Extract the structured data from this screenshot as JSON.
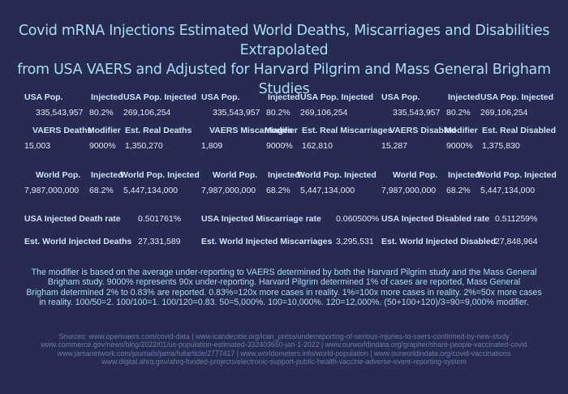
{
  "title": {
    "line1": "Covid mRNA Injections Estimated World Deaths, Miscarriages and Disabilities Extrapolated",
    "line2": "from USA VAERS and Adjusted for Harvard Pilgrim and Mass General Brigham Studies"
  },
  "columns": [
    {
      "usa": {
        "headers": [
          "USA Pop.",
          "Injected",
          "USA Pop. Injected"
        ],
        "values": [
          "335,543,957",
          "80.2%",
          "269,106,254"
        ]
      },
      "vaers": {
        "headers": [
          "VAERS Deaths",
          "Modifier",
          "Est. Real Deaths"
        ],
        "values": [
          "15,003",
          "9000%",
          "1,350,270"
        ]
      },
      "world": {
        "headers": [
          "World Pop.",
          "Injected",
          "World Pop. Injected"
        ],
        "values": [
          "7,987,000,000",
          "68.2%",
          "5,447,134,000"
        ]
      },
      "rate": {
        "label": "USA Injected Death rate",
        "value": "0.501761%"
      },
      "est": {
        "label": "Est. World Injected Deaths",
        "value": "27,331,589"
      }
    },
    {
      "usa": {
        "headers": [
          "USA Pop.",
          "Injected",
          "USA Pop. Injected"
        ],
        "values": [
          "335,543,957",
          "80.2%",
          "269,106,254"
        ]
      },
      "vaers": {
        "headers": [
          "VAERS Miscarriages",
          "Modifier",
          "Est. Real Miscarriages"
        ],
        "values": [
          "1,809",
          "9000%",
          "162,810"
        ]
      },
      "world": {
        "headers": [
          "World Pop.",
          "Injected",
          "World Pop. Injected"
        ],
        "values": [
          "7,987,000,000",
          "68.2%",
          "5,447,134,000"
        ]
      },
      "rate": {
        "label": "USA Injected Miscarriage rate",
        "value": "0.060500%"
      },
      "est": {
        "label": "Est. World Injected Miscarriages",
        "value": "3,295,531"
      }
    },
    {
      "usa": {
        "headers": [
          "USA Pop.",
          "Injected",
          "USA Pop. Injected"
        ],
        "values": [
          "335,543,957",
          "80.2%",
          "269,106,254"
        ]
      },
      "vaers": {
        "headers": [
          "VAERS Disabled",
          "Modifier",
          "Est. Real Disabled"
        ],
        "values": [
          "15,287",
          "9000%",
          "1,375,830"
        ]
      },
      "world": {
        "headers": [
          "World Pop.",
          "Injected",
          "World Pop. Injected"
        ],
        "values": [
          "7,987,000,000",
          "68.2%",
          "5,447,134,000"
        ]
      },
      "rate": {
        "label": "USA Injected Disabled rate",
        "value": "0.511259%"
      },
      "est": {
        "label": "Est. World Injected Disabled",
        "value": "27,848,964"
      }
    }
  ],
  "note": {
    "line1": "The modifier is based on the average under-reporting to VAERS determined by both the Harvard Pilgrim study and the Mass General",
    "line2": "Brigham study. 9000% represents 90x under-reporting. Harvard Pilgrim determined 1% of cases are reported, Mass General",
    "line3": "Brigham determined 2% to 0.83% are reported. 0.83%=120x more cases in reality. 1%=100x more cases in reality. 2%=50x more cases",
    "line4": "in reality. 100/50=2. 100/100=1. 100/120=0.83. 50=5,000%. 100=10,000%. 120=12,000%. (50+100+120)/3=90=9,000% modifier."
  },
  "sources": {
    "line1": "Sources: www.openvaers.com/covid-data | www.icandecide.org/ican_press/underreporting-of-serious-injuries-to-vaers-confirmed-by-new-study",
    "line2": "www.commerce.gov/news/blog/2022/01/us-population-estimated-332403650-jan-1-2022 | www.ourworldindata.org/grapher/share-people-vaccinated-covid",
    "line3": "www.jamanetwork.com/journals/jama/fullarticle/2777417 | www.worldometers.info/world-population | www.ourworldindata.org/covid-vaccinations",
    "line4": "www.digital.ahrq.gov/ahrq-funded-projects/electronic-support-public-health-vaccine-adverse-event-reporting-system"
  }
}
